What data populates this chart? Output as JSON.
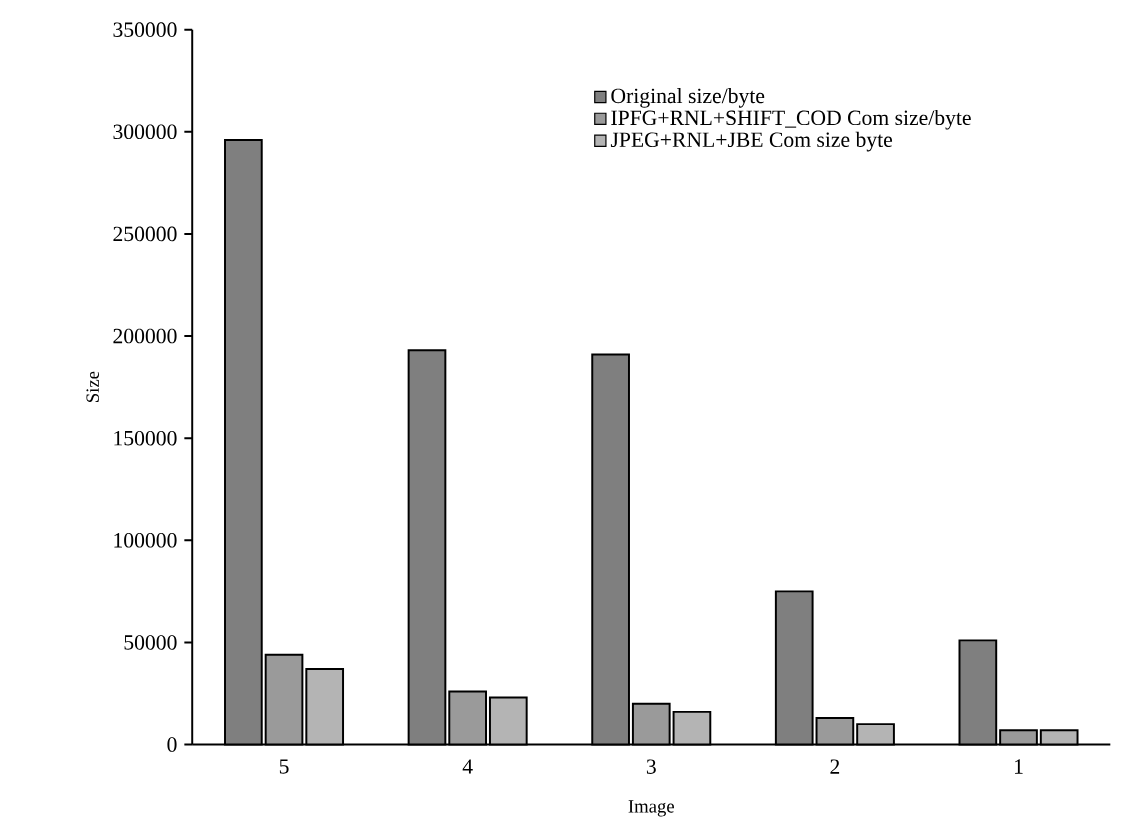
{
  "chart_data": {
    "type": "bar",
    "xlabel": "Image",
    "ylabel": "Size",
    "categories": [
      "5",
      "4",
      "3",
      "2",
      "1"
    ],
    "series": [
      {
        "name": "Original size/byte",
        "color": "#7f7f7f",
        "values": [
          296000,
          193000,
          191000,
          75000,
          51000
        ]
      },
      {
        "name": "IPFG+RNL+SHIFT_COD Com size/byte",
        "color": "#9a9a9a",
        "values": [
          44000,
          26000,
          20000,
          13000,
          7000
        ]
      },
      {
        "name": "JPEG+RNL+JBE Com size byte",
        "color": "#b4b4b4",
        "values": [
          37000,
          23000,
          16000,
          10000,
          7000
        ]
      }
    ],
    "ylim": [
      0,
      350000
    ],
    "yticks": [
      0,
      50000,
      100000,
      150000,
      200000,
      250000,
      300000,
      350000
    ],
    "grid": false,
    "legend": "top right"
  }
}
